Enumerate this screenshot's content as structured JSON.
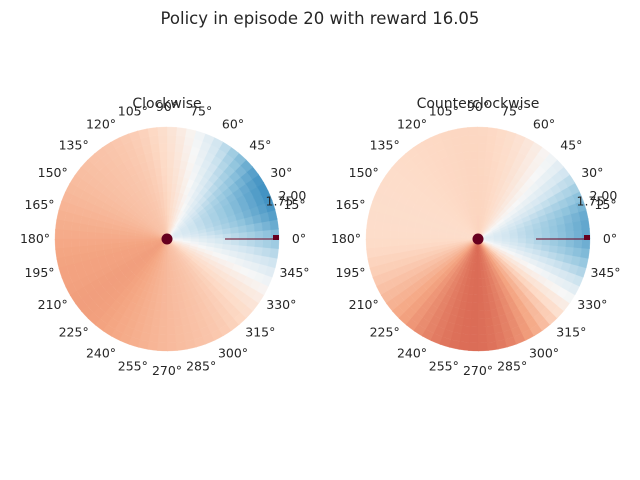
{
  "figure": {
    "suptitle": "Policy in episode 20 with reward 16.05"
  },
  "chart_data": [
    {
      "type": "heatmap",
      "projection": "polar",
      "title": "Clockwise",
      "colormap": "RdBu",
      "angle_ticks_deg": [
        "0°",
        "15°",
        "30°",
        "45°",
        "60°",
        "75°",
        "90°",
        "105°",
        "120°",
        "135°",
        "150°",
        "165°",
        "180°",
        "195°",
        "210°",
        "225°",
        "240°",
        "255°",
        "270°",
        "285°",
        "300°",
        "315°",
        "330°",
        "345°"
      ],
      "radial_ticks": [
        "1.75",
        "2.00"
      ],
      "field": {
        "peak_angle_deg": 25,
        "spread_deg": 34,
        "peak_strength": 1.0,
        "floor_value": -0.38,
        "low_angle_deg": 210,
        "low_strength": 0.22
      },
      "marker_color": "#67001f"
    },
    {
      "type": "heatmap",
      "projection": "polar",
      "title": "Counterclockwise",
      "colormap": "RdBu",
      "angle_ticks_deg": [
        "0°",
        "15°",
        "30°",
        "45°",
        "60°",
        "75°",
        "90°",
        "105°",
        "120°",
        "135°",
        "150°",
        "165°",
        "180°",
        "195°",
        "210°",
        "225°",
        "240°",
        "255°",
        "270°",
        "285°",
        "300°",
        "315°",
        "330°",
        "345°"
      ],
      "radial_ticks": [
        "1.75",
        "2.00"
      ],
      "field": {
        "peak_angle_deg": 5,
        "spread_deg": 30,
        "peak_strength": 0.85,
        "floor_value": -0.3,
        "low_angle_deg": 265,
        "low_strength": 0.35
      },
      "marker_color": "#67001f"
    }
  ]
}
